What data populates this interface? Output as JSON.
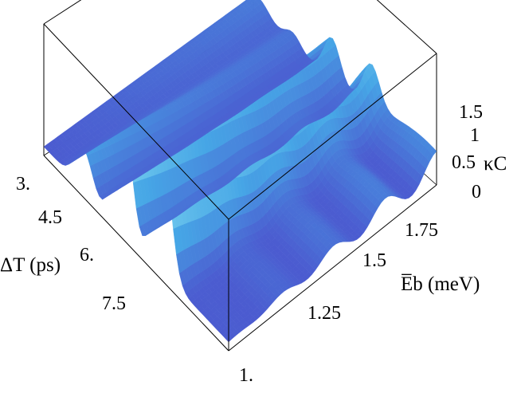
{
  "chart_data": {
    "type": "surface3d",
    "x_axis": {
      "label": "ΔT (ps)",
      "ticks": [
        "3.",
        "4.5",
        "6.",
        "7.5"
      ],
      "range": [
        2.0,
        9.0
      ]
    },
    "y_axis": {
      "label": "E̅b (meV)",
      "ticks": [
        "1.",
        "1.25",
        "1.5",
        "1.75"
      ],
      "range": [
        1.0,
        2.0
      ]
    },
    "z_axis": {
      "label": "κC",
      "ticks": [
        "0",
        "0.5",
        "1",
        "1.5"
      ],
      "range": [
        0,
        1.8
      ]
    },
    "peaks": [
      {
        "delta_t_ps": 3.5,
        "amplitude": 0.55
      },
      {
        "delta_t_ps": 5.0,
        "amplitude": 1.65
      },
      {
        "delta_t_ps": 6.5,
        "amplitude": 1.65
      }
    ],
    "oscillation_period_meV": 0.25,
    "colormap": [
      "#1f3a8a",
      "#4b5bd0",
      "#46a6e6",
      "#7fd6f0",
      "#d7f5b0"
    ]
  }
}
